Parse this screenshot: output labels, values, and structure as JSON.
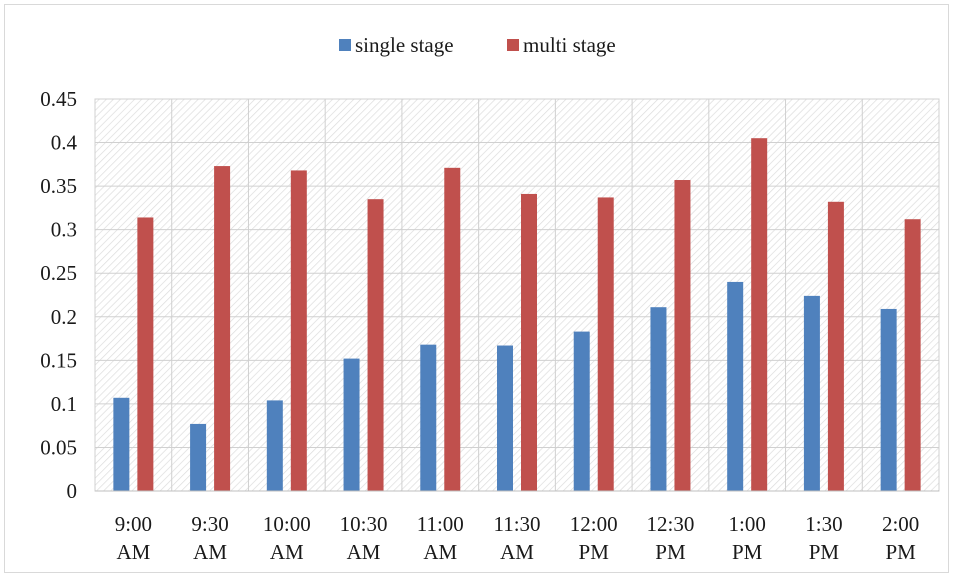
{
  "chart_data": {
    "type": "bar",
    "categories": [
      "9:00 AM",
      "9:30 AM",
      "10:00 AM",
      "10:30 AM",
      "11:00 AM",
      "11:30 AM",
      "12:00 PM",
      "12:30 PM",
      "1:00 PM",
      "1:30 PM",
      "2:00 PM"
    ],
    "category_lines": [
      [
        "9:00",
        "AM"
      ],
      [
        "9:30",
        "AM"
      ],
      [
        "10:00",
        "AM"
      ],
      [
        "10:30",
        "AM"
      ],
      [
        "11:00",
        "AM"
      ],
      [
        "11:30",
        "AM"
      ],
      [
        "12:00",
        "PM"
      ],
      [
        "12:30",
        "PM"
      ],
      [
        "1:00",
        "PM"
      ],
      [
        "1:30",
        "PM"
      ],
      [
        "2:00",
        "PM"
      ]
    ],
    "series": [
      {
        "name": "single stage",
        "color": "#4f81bd",
        "values": [
          0.107,
          0.077,
          0.104,
          0.152,
          0.168,
          0.167,
          0.183,
          0.211,
          0.24,
          0.224,
          0.209
        ]
      },
      {
        "name": "multi stage",
        "color": "#c0504d",
        "values": [
          0.314,
          0.373,
          0.368,
          0.335,
          0.371,
          0.341,
          0.337,
          0.357,
          0.405,
          0.332,
          0.312
        ]
      }
    ],
    "ylim": [
      0,
      0.45
    ],
    "yticks": [
      "0",
      "0.05",
      "0.1",
      "0.15",
      "0.2",
      "0.25",
      "0.3",
      "0.35",
      "0.4",
      "0.45"
    ],
    "grid": true,
    "legend_position": "top-center",
    "title": "",
    "xlabel": "",
    "ylabel": ""
  }
}
